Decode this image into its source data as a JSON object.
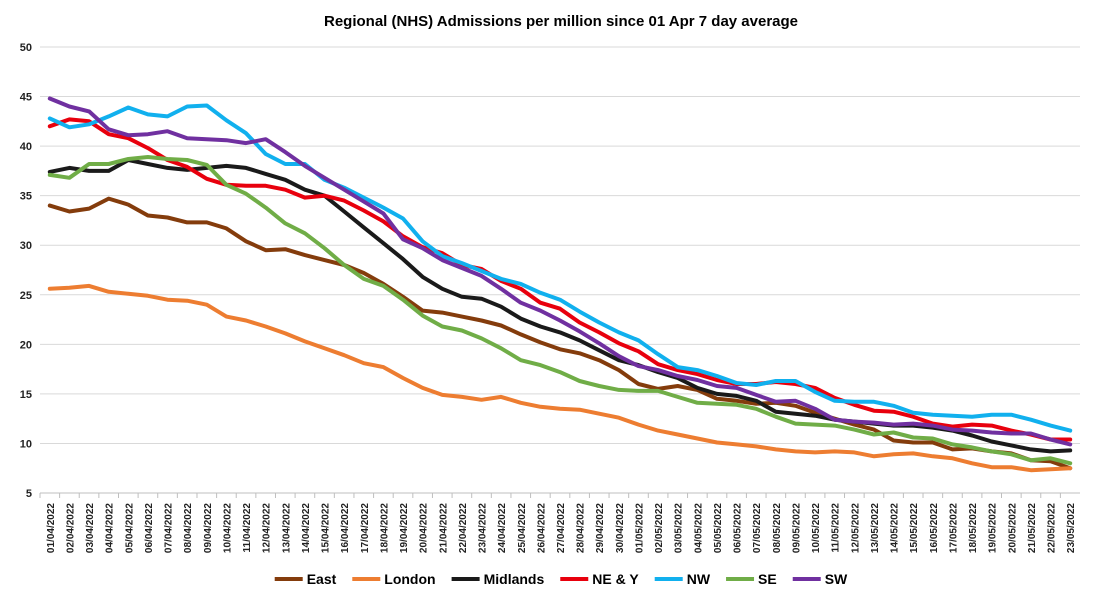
{
  "chart_data": {
    "type": "line",
    "title": "Regional (NHS) Admissions per million since 01 Apr 7 day average",
    "xlabel": "",
    "ylabel": "",
    "ylim": [
      5,
      50
    ],
    "yticks": [
      5,
      10,
      15,
      20,
      25,
      30,
      35,
      40,
      45,
      50
    ],
    "grid": true,
    "legend_position": "bottom",
    "categories": [
      "01/04/2022",
      "02/04/2022",
      "03/04/2022",
      "04/04/2022",
      "05/04/2022",
      "06/04/2022",
      "07/04/2022",
      "08/04/2022",
      "09/04/2022",
      "10/04/2022",
      "11/04/2022",
      "12/04/2022",
      "13/04/2022",
      "14/04/2022",
      "15/04/2022",
      "16/04/2022",
      "17/04/2022",
      "18/04/2022",
      "19/04/2022",
      "20/04/2022",
      "21/04/2022",
      "22/04/2022",
      "23/04/2022",
      "24/04/2022",
      "25/04/2022",
      "26/04/2022",
      "27/04/2022",
      "28/04/2022",
      "29/04/2022",
      "30/04/2022",
      "01/05/2022",
      "02/05/2022",
      "03/05/2022",
      "04/05/2022",
      "05/05/2022",
      "06/05/2022",
      "07/05/2022",
      "08/05/2022",
      "09/05/2022",
      "10/05/2022",
      "11/05/2022",
      "12/05/2022",
      "13/05/2022",
      "14/05/2022",
      "15/05/2022",
      "16/05/2022",
      "17/05/2022",
      "18/05/2022",
      "19/05/2022",
      "20/05/2022",
      "21/05/2022",
      "22/05/2022",
      "23/05/2022"
    ],
    "series": [
      {
        "name": "East",
        "color": "#843c0c",
        "values": [
          34.0,
          33.4,
          33.7,
          34.7,
          34.1,
          33.0,
          32.8,
          32.3,
          32.3,
          31.7,
          30.4,
          29.5,
          29.6,
          29.0,
          28.5,
          28.0,
          27.2,
          26.1,
          24.8,
          23.4,
          23.2,
          22.8,
          22.4,
          21.9,
          21.0,
          20.2,
          19.5,
          19.1,
          18.4,
          17.4,
          16.0,
          15.5,
          15.8,
          15.4,
          14.5,
          14.3,
          14.0,
          14.1,
          13.8,
          13.1,
          12.5,
          11.9,
          11.4,
          10.3,
          10.1,
          10.1,
          9.4,
          9.5,
          9.2,
          9.0,
          8.3,
          8.2,
          7.5
        ]
      },
      {
        "name": "London",
        "color": "#ed7d31",
        "values": [
          25.6,
          25.7,
          25.9,
          25.3,
          25.1,
          24.9,
          24.5,
          24.4,
          24.0,
          22.8,
          22.4,
          21.8,
          21.1,
          20.3,
          19.6,
          18.9,
          18.1,
          17.7,
          16.6,
          15.6,
          14.9,
          14.7,
          14.4,
          14.7,
          14.1,
          13.7,
          13.5,
          13.4,
          13.0,
          12.6,
          11.9,
          11.3,
          10.9,
          10.5,
          10.1,
          9.9,
          9.7,
          9.4,
          9.2,
          9.1,
          9.2,
          9.1,
          8.7,
          8.9,
          9.0,
          8.7,
          8.5,
          8.0,
          7.6,
          7.6,
          7.3,
          7.4,
          7.5
        ]
      },
      {
        "name": "Midlands",
        "color": "#1a1a1a",
        "values": [
          37.4,
          37.8,
          37.5,
          37.5,
          38.6,
          38.2,
          37.8,
          37.6,
          37.8,
          38.0,
          37.8,
          37.2,
          36.6,
          35.6,
          35.0,
          33.4,
          31.8,
          30.2,
          28.6,
          26.8,
          25.6,
          24.8,
          24.6,
          23.8,
          22.6,
          21.8,
          21.2,
          20.4,
          19.4,
          18.4,
          17.9,
          17.2,
          16.6,
          15.6,
          15.0,
          14.8,
          14.3,
          13.2,
          13.0,
          12.8,
          12.4,
          12.2,
          12.0,
          11.8,
          11.8,
          11.6,
          11.3,
          10.8,
          10.2,
          9.8,
          9.4,
          9.2,
          9.3
        ]
      },
      {
        "name": "NE & Y",
        "color": "#e8000d",
        "values": [
          42.0,
          42.7,
          42.5,
          41.2,
          40.8,
          39.8,
          38.6,
          37.9,
          36.7,
          36.1,
          36.0,
          36.0,
          35.6,
          34.8,
          35.0,
          34.5,
          33.5,
          32.4,
          30.9,
          29.8,
          29.2,
          28.0,
          27.6,
          26.4,
          25.6,
          24.2,
          23.6,
          22.2,
          21.2,
          20.1,
          19.3,
          18.0,
          17.4,
          17.0,
          16.4,
          16.0,
          16.0,
          16.2,
          16.0,
          15.6,
          14.6,
          13.9,
          13.3,
          13.2,
          12.7,
          12.0,
          11.7,
          11.9,
          11.8,
          11.3,
          10.9,
          10.4,
          10.4
        ]
      },
      {
        "name": "NW",
        "color": "#11b0ee",
        "values": [
          42.8,
          41.9,
          42.2,
          43.0,
          43.9,
          43.2,
          43.0,
          44.0,
          44.1,
          42.6,
          41.3,
          39.2,
          38.2,
          38.2,
          36.6,
          35.8,
          34.8,
          33.8,
          32.7,
          30.4,
          28.9,
          28.2,
          27.4,
          26.6,
          26.1,
          25.2,
          24.5,
          23.3,
          22.2,
          21.2,
          20.4,
          19.0,
          17.7,
          17.4,
          16.8,
          16.1,
          15.9,
          16.3,
          16.3,
          15.2,
          14.3,
          14.2,
          14.2,
          13.8,
          13.1,
          12.9,
          12.8,
          12.7,
          12.9,
          12.9,
          12.4,
          11.8,
          11.3
        ]
      },
      {
        "name": "SE",
        "color": "#70ad47",
        "values": [
          37.1,
          36.8,
          38.2,
          38.2,
          38.7,
          38.9,
          38.7,
          38.6,
          38.1,
          36.1,
          35.2,
          33.8,
          32.2,
          31.2,
          29.7,
          28.0,
          26.6,
          25.9,
          24.5,
          22.9,
          21.8,
          21.4,
          20.6,
          19.6,
          18.4,
          17.9,
          17.2,
          16.3,
          15.8,
          15.4,
          15.3,
          15.3,
          14.7,
          14.1,
          14.0,
          13.9,
          13.5,
          12.7,
          12.0,
          11.9,
          11.8,
          11.4,
          10.9,
          11.1,
          10.6,
          10.5,
          9.9,
          9.6,
          9.2,
          8.9,
          8.3,
          8.5,
          8.0
        ]
      },
      {
        "name": "SW",
        "color": "#7030a0",
        "values": [
          44.8,
          44.0,
          43.5,
          41.7,
          41.1,
          41.2,
          41.5,
          40.8,
          40.7,
          40.6,
          40.3,
          40.7,
          39.4,
          38.0,
          36.8,
          35.6,
          34.4,
          33.2,
          30.6,
          29.7,
          28.5,
          27.7,
          26.9,
          25.6,
          24.2,
          23.4,
          22.4,
          21.3,
          20.1,
          18.8,
          17.8,
          17.4,
          16.8,
          16.4,
          15.8,
          15.6,
          14.9,
          14.2,
          14.3,
          13.5,
          12.4,
          12.2,
          12.1,
          11.9,
          12.0,
          11.8,
          11.4,
          11.3,
          11.1,
          11.0,
          11.0,
          10.4,
          9.9
        ]
      }
    ]
  }
}
